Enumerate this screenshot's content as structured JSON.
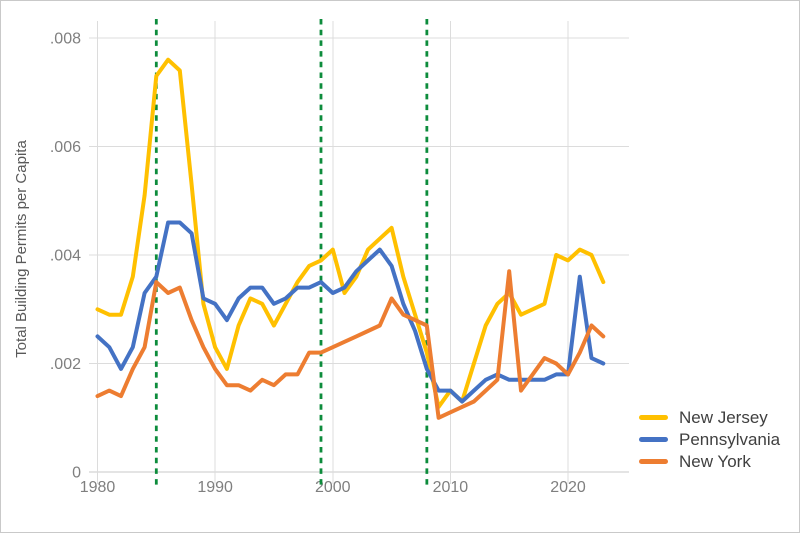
{
  "theme": {
    "background": "#ffffff",
    "border": "#c9c9c9",
    "grid_color": "#dcdcdc",
    "axis_line_color": "#c9c9c9",
    "tick_text_color": "#7f7f7f",
    "axis_title_color": "#595959",
    "legend_text_color": "#404040"
  },
  "chart_data": {
    "type": "line",
    "title": "",
    "xlabel": "",
    "ylabel": "Total Building Permits per Capita",
    "grid": true,
    "legend_position": "bottom-right",
    "ylim": [
      0,
      0.008
    ],
    "xlim": [
      1980,
      2025
    ],
    "y_ticks": [
      {
        "value": 0,
        "label": "0"
      },
      {
        "value": 0.002,
        "label": ".002"
      },
      {
        "value": 0.004,
        "label": ".004"
      },
      {
        "value": 0.006,
        "label": ".006"
      },
      {
        "value": 0.008,
        "label": ".008"
      }
    ],
    "x_ticks": [
      {
        "value": 1980,
        "label": "1980"
      },
      {
        "value": 1990,
        "label": "1990"
      },
      {
        "value": 2000,
        "label": "2000"
      },
      {
        "value": 2010,
        "label": "2010"
      },
      {
        "value": 2020,
        "label": "2020"
      }
    ],
    "event_lines": {
      "years": [
        1985,
        1999,
        2008
      ],
      "color": "#0d8c3c",
      "style": "dashed"
    },
    "x": [
      1980,
      1981,
      1982,
      1983,
      1984,
      1985,
      1986,
      1987,
      1988,
      1989,
      1990,
      1991,
      1992,
      1993,
      1994,
      1995,
      1996,
      1997,
      1998,
      1999,
      2000,
      2001,
      2002,
      2003,
      2004,
      2005,
      2006,
      2007,
      2008,
      2009,
      2010,
      2011,
      2012,
      2013,
      2014,
      2015,
      2016,
      2017,
      2018,
      2019,
      2020,
      2021,
      2022,
      2023
    ],
    "series": [
      {
        "name": "New Jersey",
        "color": "#FFC000",
        "values": [
          0.003,
          0.0029,
          0.0029,
          0.0036,
          0.0051,
          0.0073,
          0.0076,
          0.0074,
          0.0053,
          0.0031,
          0.0023,
          0.0019,
          0.0027,
          0.0032,
          0.0031,
          0.0027,
          0.0031,
          0.0035,
          0.0038,
          0.0039,
          0.0041,
          0.0033,
          0.0036,
          0.0041,
          0.0043,
          0.0045,
          0.0036,
          0.0029,
          0.0022,
          0.0012,
          0.0015,
          0.0013,
          0.002,
          0.0027,
          0.0031,
          0.0033,
          0.0029,
          0.003,
          0.0031,
          0.004,
          0.0039,
          0.0041,
          0.004,
          0.0035
        ]
      },
      {
        "name": "Pennsylvania",
        "color": "#4472C4",
        "values": [
          0.0025,
          0.0023,
          0.0019,
          0.0023,
          0.0033,
          0.0036,
          0.0046,
          0.0046,
          0.0044,
          0.0032,
          0.0031,
          0.0028,
          0.0032,
          0.0034,
          0.0034,
          0.0031,
          0.0032,
          0.0034,
          0.0034,
          0.0035,
          0.0033,
          0.0034,
          0.0037,
          0.0039,
          0.0041,
          0.0038,
          0.0031,
          0.0026,
          0.0019,
          0.0015,
          0.0015,
          0.0013,
          0.0015,
          0.0017,
          0.0018,
          0.0017,
          0.0017,
          0.0017,
          0.0017,
          0.0018,
          0.0018,
          0.0036,
          0.0021,
          0.002
        ]
      },
      {
        "name": "New York",
        "color": "#ED7D31",
        "values": [
          0.0014,
          0.0015,
          0.0014,
          0.0019,
          0.0023,
          0.0035,
          0.0033,
          0.0034,
          0.0028,
          0.0023,
          0.0019,
          0.0016,
          0.0016,
          0.0015,
          0.0017,
          0.0016,
          0.0018,
          0.0018,
          0.0022,
          0.0022,
          0.0023,
          0.0024,
          0.0025,
          0.0026,
          0.0027,
          0.0032,
          0.0029,
          0.0028,
          0.0027,
          0.001,
          0.0011,
          0.0012,
          0.0013,
          0.0015,
          0.0017,
          0.0037,
          0.0015,
          0.0018,
          0.0021,
          0.002,
          0.0018,
          0.0022,
          0.0027,
          0.0025
        ]
      }
    ]
  }
}
